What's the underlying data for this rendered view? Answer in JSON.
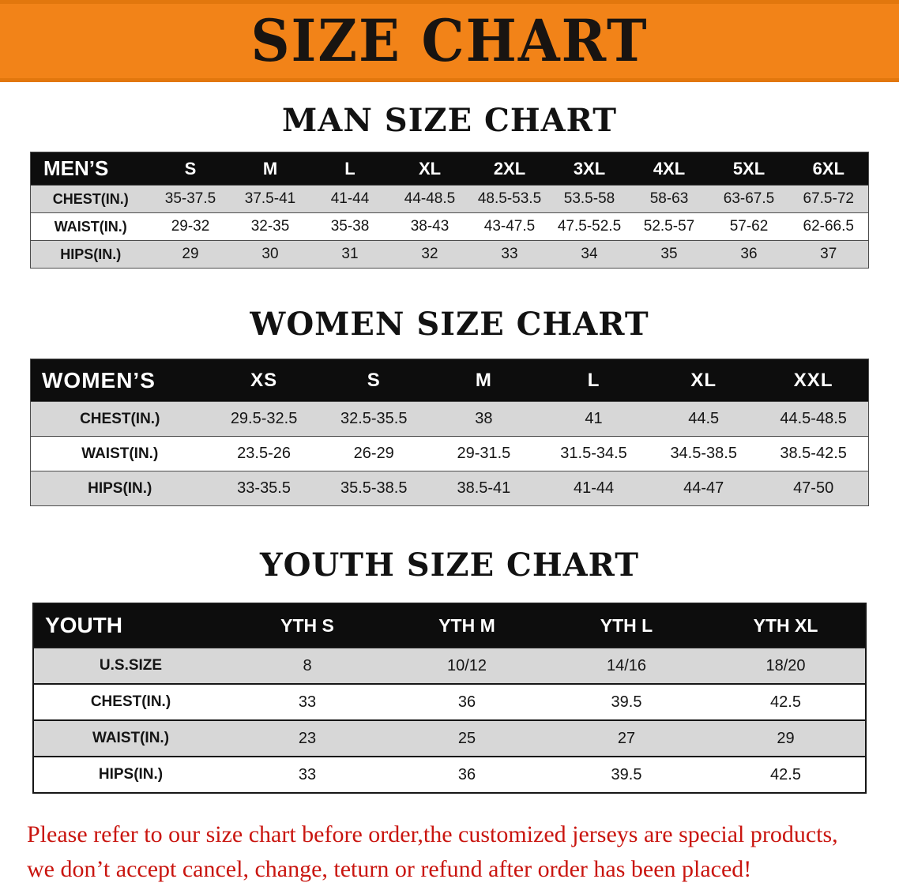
{
  "banner": {
    "title": "SIZE CHART"
  },
  "chart_data": [
    {
      "type": "table",
      "title": "MAN SIZE CHART",
      "columns": [
        "MEN’S",
        "S",
        "M",
        "L",
        "XL",
        "2XL",
        "3XL",
        "4XL",
        "5XL",
        "6XL"
      ],
      "rows": [
        [
          "CHEST(IN.)",
          "35-37.5",
          "37.5-41",
          "41-44",
          "44-48.5",
          "48.5-53.5",
          "53.5-58",
          "58-63",
          "63-67.5",
          "67.5-72"
        ],
        [
          "WAIST(IN.)",
          "29-32",
          "32-35",
          "35-38",
          "38-43",
          "43-47.5",
          "47.5-52.5",
          "52.5-57",
          "57-62",
          "62-66.5"
        ],
        [
          "HIPS(IN.)",
          "29",
          "30",
          "31",
          "32",
          "33",
          "34",
          "35",
          "36",
          "37"
        ]
      ]
    },
    {
      "type": "table",
      "title": "WOMEN SIZE CHART",
      "columns": [
        "WOMEN’S",
        "XS",
        "S",
        "M",
        "L",
        "XL",
        "XXL"
      ],
      "rows": [
        [
          "CHEST(IN.)",
          "29.5-32.5",
          "32.5-35.5",
          "38",
          "41",
          "44.5",
          "44.5-48.5"
        ],
        [
          "WAIST(IN.)",
          "23.5-26",
          "26-29",
          "29-31.5",
          "31.5-34.5",
          "34.5-38.5",
          "38.5-42.5"
        ],
        [
          "HIPS(IN.)",
          "33-35.5",
          "35.5-38.5",
          "38.5-41",
          "41-44",
          "44-47",
          "47-50"
        ]
      ]
    },
    {
      "type": "table",
      "title": "YOUTH SIZE CHART",
      "columns": [
        "YOUTH",
        "YTH S",
        "YTH M",
        "YTH L",
        "YTH XL"
      ],
      "rows": [
        [
          "U.S.SIZE",
          "8",
          "10/12",
          "14/16",
          "18/20"
        ],
        [
          "CHEST(IN.)",
          "33",
          "36",
          "39.5",
          "42.5"
        ],
        [
          "WAIST(IN.)",
          "23",
          "25",
          "27",
          "29"
        ],
        [
          "HIPS(IN.)",
          "33",
          "36",
          "39.5",
          "42.5"
        ]
      ]
    }
  ],
  "notice": {
    "line1": "Please refer to our size chart before order,the customized jerseys are special products,",
    "line2": "we don’t accept cancel, change, teturn or refund after order has been placed!"
  },
  "colors": {
    "banner_bg": "#F28318",
    "banner_text": "#181411",
    "header_row_bg": "#0D0D0D",
    "header_row_text": "#FFFFFF",
    "row_alt_bg": "#D7D7D7",
    "notice_text": "#C9150F"
  }
}
